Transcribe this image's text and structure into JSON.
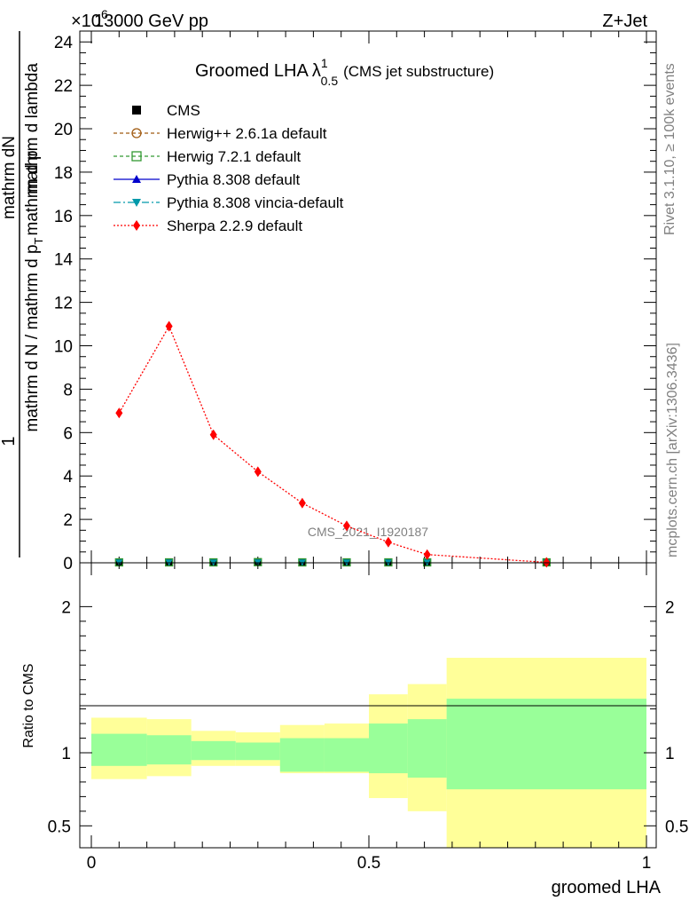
{
  "header": {
    "energy": "13000 GeV pp",
    "process": "Z+Jet",
    "exponent": "×10",
    "exponent_power": "6"
  },
  "side_labels": {
    "rivet": "Rivet 3.1.10, ≥ 100k events",
    "mcplots": "mcplots.cern.ch [arXiv:1306.3436]"
  },
  "colors": {
    "sherpa": "#ff0000",
    "herwigpp": "#a05a10",
    "herwig7": "#339933",
    "pythia": "#0000cc",
    "vincia": "#0099aa",
    "band_inner": "#99ff99",
    "band_outer": "#ffff99"
  },
  "chart_data": [
    {
      "type": "line",
      "title": "Groomed LHA",
      "title_lambda": "λ",
      "title_sup": "1",
      "title_sub": "0.5",
      "title_note": "(CMS jet substructure)",
      "ylabel_numerator": "mathrm dN",
      "ylabel_denominator": "mathrm d N / mathrm d p",
      "ylabel_denominator_tail": "mathrm d p",
      "ylabel_denominator_end": "mathrm d lambda",
      "ylabel_sub": "T",
      "ylabel_one": "1",
      "watermark": "CMS_2021_I1920187",
      "ylim": [
        0,
        24.5
      ],
      "y_scale_exponent": 6,
      "yticks": [
        0,
        2,
        4,
        6,
        8,
        10,
        12,
        14,
        16,
        18,
        20,
        22,
        24
      ],
      "ytick_labels": [
        "0",
        "2",
        "4",
        "6",
        "8",
        "10",
        "12",
        "14",
        "16",
        "18",
        "20",
        "22",
        "24"
      ],
      "xlim": [
        -0.02,
        1.0
      ],
      "legend_position": "top-left",
      "legend": [
        {
          "label": "CMS",
          "marker": "square",
          "color": "#000000"
        },
        {
          "label": "Herwig++ 2.6.1a default",
          "marker": "open-circle",
          "color": "#a05a10"
        },
        {
          "label": "Herwig 7.2.1 default",
          "marker": "open-square",
          "color": "#339933"
        },
        {
          "label": "Pythia 8.308 default",
          "marker": "triangle-up",
          "color": "#0000cc"
        },
        {
          "label": "Pythia 8.308 vincia-default",
          "marker": "triangle-down",
          "color": "#0099aa"
        },
        {
          "label": "Sherpa 2.2.9 default",
          "marker": "diamond",
          "color": "#ff0000"
        }
      ],
      "series": [
        {
          "name": "Sherpa 2.2.9 default",
          "x": [
            0.05,
            0.14,
            0.22,
            0.3,
            0.38,
            0.46,
            0.535,
            0.605,
            0.82
          ],
          "y": [
            6.9,
            10.9,
            5.9,
            4.2,
            2.75,
            1.7,
            0.95,
            0.38,
            0.02
          ]
        },
        {
          "name": "CMS",
          "x": [
            0.05,
            0.14,
            0.22,
            0.3,
            0.38,
            0.46,
            0.535,
            0.605,
            0.82
          ],
          "y": [
            0.02,
            0.02,
            0.02,
            0.03,
            0.02,
            0.02,
            0.02,
            0.02,
            0.02
          ]
        }
      ]
    },
    {
      "type": "area",
      "ylabel": "Ratio to CMS",
      "xlabel": "groomed LHA",
      "ylim": [
        0.35,
        2.3
      ],
      "yticks": [
        0.5,
        1,
        2
      ],
      "ytick_labels": [
        "0.5",
        "1",
        "2"
      ],
      "xticks": [
        0,
        0.5,
        1
      ],
      "xtick_labels": [
        "0",
        "0.5",
        "1"
      ],
      "bins": [
        {
          "x0": 0.0,
          "x1": 0.1,
          "inner": [
            0.91,
            1.13
          ],
          "outer": [
            0.82,
            1.24
          ]
        },
        {
          "x0": 0.1,
          "x1": 0.18,
          "inner": [
            0.92,
            1.12
          ],
          "outer": [
            0.84,
            1.23
          ]
        },
        {
          "x0": 0.18,
          "x1": 0.26,
          "inner": [
            0.95,
            1.08
          ],
          "outer": [
            0.91,
            1.15
          ]
        },
        {
          "x0": 0.26,
          "x1": 0.34,
          "inner": [
            0.95,
            1.07
          ],
          "outer": [
            0.91,
            1.14
          ]
        },
        {
          "x0": 0.34,
          "x1": 0.42,
          "inner": [
            0.87,
            1.1
          ],
          "outer": [
            0.86,
            1.19
          ]
        },
        {
          "x0": 0.42,
          "x1": 0.5,
          "inner": [
            0.87,
            1.1
          ],
          "outer": [
            0.86,
            1.2
          ]
        },
        {
          "x0": 0.5,
          "x1": 0.57,
          "inner": [
            0.86,
            1.2
          ],
          "outer": [
            0.69,
            1.4
          ]
        },
        {
          "x0": 0.57,
          "x1": 0.64,
          "inner": [
            0.83,
            1.23
          ],
          "outer": [
            0.6,
            1.47
          ]
        },
        {
          "x0": 0.64,
          "x1": 1.0,
          "inner": [
            0.75,
            1.37
          ],
          "outer": [
            0.35,
            1.65
          ]
        }
      ]
    }
  ]
}
